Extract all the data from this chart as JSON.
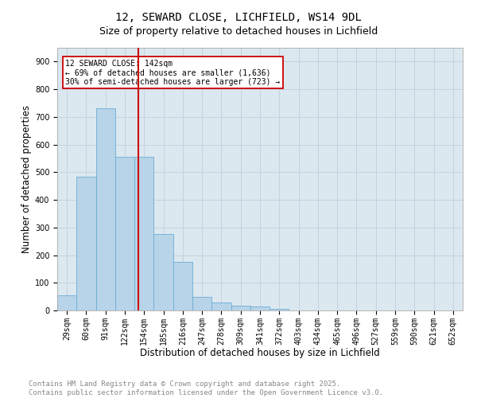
{
  "title_line1": "12, SEWARD CLOSE, LICHFIELD, WS14 9DL",
  "title_line2": "Size of property relative to detached houses in Lichfield",
  "xlabel": "Distribution of detached houses by size in Lichfield",
  "ylabel": "Number of detached properties",
  "categories": [
    "29sqm",
    "60sqm",
    "91sqm",
    "122sqm",
    "154sqm",
    "185sqm",
    "216sqm",
    "247sqm",
    "278sqm",
    "309sqm",
    "341sqm",
    "372sqm",
    "403sqm",
    "434sqm",
    "465sqm",
    "496sqm",
    "527sqm",
    "559sqm",
    "590sqm",
    "621sqm",
    "652sqm"
  ],
  "values": [
    55,
    485,
    730,
    555,
    555,
    275,
    175,
    50,
    30,
    18,
    15,
    5,
    0,
    0,
    0,
    0,
    0,
    0,
    0,
    0,
    0
  ],
  "bar_color": "#b8d4e8",
  "bar_edge_color": "#6aaed6",
  "grid_color": "#c8d0dc",
  "bg_color": "#dce8f0",
  "vline_color": "#cc0000",
  "vline_xidx": 3.72,
  "annotation_text": "12 SEWARD CLOSE: 142sqm\n← 69% of detached houses are smaller (1,636)\n30% of semi-detached houses are larger (723) →",
  "annotation_box_color": "#cc0000",
  "ylim": [
    0,
    950
  ],
  "yticks": [
    0,
    100,
    200,
    300,
    400,
    500,
    600,
    700,
    800,
    900
  ],
  "footer_line1": "Contains HM Land Registry data © Crown copyright and database right 2025.",
  "footer_line2": "Contains public sector information licensed under the Open Government Licence v3.0.",
  "title_fontsize": 10,
  "subtitle_fontsize": 9,
  "tick_fontsize": 7,
  "footer_fontsize": 6.5,
  "annotation_fontsize": 7,
  "ylabel_fontsize": 8.5,
  "xlabel_fontsize": 8.5
}
